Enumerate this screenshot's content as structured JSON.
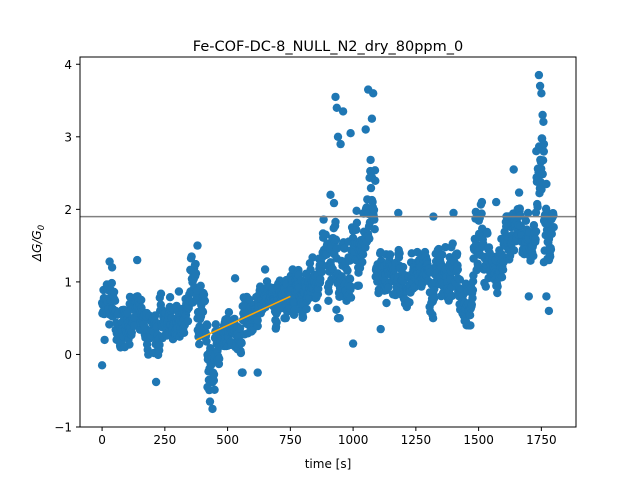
{
  "chart_data": {
    "type": "scatter",
    "title": "Fe-COF-DC-8_NULL_N2_dry_80ppm_0",
    "xlabel": "time [s]",
    "ylabel_main": "ΔG/G",
    "ylabel_sub": "0",
    "xlim": [
      -88,
      1888
    ],
    "ylim": [
      -1,
      4.1
    ],
    "xticks": [
      0,
      250,
      500,
      750,
      1000,
      1250,
      1500,
      1750
    ],
    "xtick_labels": [
      "0",
      "250",
      "500",
      "750",
      "1000",
      "1250",
      "1500",
      "1750"
    ],
    "yticks": [
      -1,
      0,
      1,
      2,
      3,
      4
    ],
    "ytick_labels": [
      "−1",
      "0",
      "1",
      "2",
      "3",
      "4"
    ],
    "colors": {
      "points": "#1f77b4",
      "trend": "#ffa500",
      "threshold": "#808080"
    },
    "threshold_line": {
      "name": "threshold",
      "y": 1.9
    },
    "trend_line": {
      "name": "trend",
      "x": [
        375,
        750
      ],
      "y": [
        0.2,
        0.8
      ]
    },
    "series": [
      {
        "name": "signal",
        "segments": [
          {
            "x0": 0,
            "x1": 60,
            "base": 0.55,
            "noise": 0.32,
            "min": -0.2,
            "max": 1.3
          },
          {
            "x0": 60,
            "x1": 110,
            "base": 0.35,
            "noise": 0.3,
            "min": -0.05,
            "max": 1.0
          },
          {
            "x0": 110,
            "x1": 150,
            "base": 0.7,
            "noise": 0.28,
            "min": 0.1,
            "max": 1.2
          },
          {
            "x0": 150,
            "x1": 200,
            "base": 0.5,
            "noise": 0.3,
            "min": -0.05,
            "max": 1.0
          },
          {
            "x0": 200,
            "x1": 230,
            "base": 0.3,
            "noise": 0.35,
            "min": -0.4,
            "max": 0.8
          },
          {
            "x0": 230,
            "x1": 300,
            "base": 0.55,
            "noise": 0.3,
            "min": 0.0,
            "max": 1.05
          },
          {
            "x0": 300,
            "x1": 350,
            "base": 0.55,
            "noise": 0.35,
            "min": 0.0,
            "max": 1.15
          },
          {
            "x0": 350,
            "x1": 380,
            "base": 0.8,
            "noise": 0.35,
            "min": 0.1,
            "max": 1.5
          },
          {
            "x0": 380,
            "x1": 420,
            "base": 0.3,
            "noise": 0.4,
            "min": -0.3,
            "max": 1.2
          },
          {
            "x0": 420,
            "x1": 450,
            "base": -0.05,
            "noise": 0.4,
            "min": -0.75,
            "max": 0.6
          },
          {
            "x0": 450,
            "x1": 500,
            "base": 0.25,
            "noise": 0.3,
            "min": -0.2,
            "max": 0.8
          },
          {
            "x0": 500,
            "x1": 560,
            "base": 0.3,
            "noise": 0.3,
            "min": -0.25,
            "max": 1.05
          },
          {
            "x0": 560,
            "x1": 620,
            "base": 0.5,
            "noise": 0.3,
            "min": -0.25,
            "max": 1.1
          },
          {
            "x0": 620,
            "x1": 700,
            "base": 0.75,
            "noise": 0.3,
            "min": 0.1,
            "max": 1.2
          },
          {
            "x0": 700,
            "x1": 770,
            "base": 0.85,
            "noise": 0.3,
            "min": 0.15,
            "max": 1.55
          },
          {
            "x0": 770,
            "x1": 860,
            "base": 0.95,
            "noise": 0.3,
            "min": 0.3,
            "max": 1.6
          },
          {
            "x0": 860,
            "x1": 920,
            "base": 1.2,
            "noise": 0.4,
            "min": 0.4,
            "max": 2.2
          },
          {
            "x0": 920,
            "x1": 950,
            "base": 1.6,
            "noise": 0.7,
            "min": 0.5,
            "max": 3.55
          },
          {
            "x0": 950,
            "x1": 1000,
            "base": 1.3,
            "noise": 0.55,
            "min": 0.2,
            "max": 2.9
          },
          {
            "x0": 1000,
            "x1": 1050,
            "base": 1.6,
            "noise": 0.6,
            "min": 0.15,
            "max": 3.4
          },
          {
            "x0": 1050,
            "x1": 1090,
            "base": 1.9,
            "noise": 0.65,
            "min": 0.5,
            "max": 3.65
          },
          {
            "x0": 1090,
            "x1": 1150,
            "base": 1.05,
            "noise": 0.35,
            "min": 0.35,
            "max": 1.8
          },
          {
            "x0": 1150,
            "x1": 1250,
            "base": 1.1,
            "noise": 0.35,
            "min": 0.6,
            "max": 1.95
          },
          {
            "x0": 1250,
            "x1": 1350,
            "base": 1.15,
            "noise": 0.35,
            "min": 0.5,
            "max": 1.9
          },
          {
            "x0": 1350,
            "x1": 1420,
            "base": 1.05,
            "noise": 0.4,
            "min": 0.35,
            "max": 1.95
          },
          {
            "x0": 1420,
            "x1": 1480,
            "base": 0.95,
            "noise": 0.35,
            "min": 0.4,
            "max": 1.6
          },
          {
            "x0": 1480,
            "x1": 1540,
            "base": 1.45,
            "noise": 0.4,
            "min": 0.7,
            "max": 2.1
          },
          {
            "x0": 1540,
            "x1": 1600,
            "base": 1.25,
            "noise": 0.4,
            "min": 0.4,
            "max": 2.1
          },
          {
            "x0": 1600,
            "x1": 1680,
            "base": 1.7,
            "noise": 0.4,
            "min": 0.8,
            "max": 2.55
          },
          {
            "x0": 1680,
            "x1": 1730,
            "base": 1.55,
            "noise": 0.35,
            "min": 0.85,
            "max": 2.2
          },
          {
            "x0": 1730,
            "x1": 1760,
            "base": 2.6,
            "noise": 0.65,
            "min": 1.3,
            "max": 3.85
          },
          {
            "x0": 1760,
            "x1": 1800,
            "base": 1.6,
            "noise": 0.4,
            "min": 0.6,
            "max": 2.35
          }
        ],
        "points": [
          [
            0,
            -0.15
          ],
          [
            10,
            0.2
          ],
          [
            30,
            1.28
          ],
          [
            40,
            1.2
          ],
          [
            90,
            0.1
          ],
          [
            140,
            1.3
          ],
          [
            215,
            -0.38
          ],
          [
            380,
            1.5
          ],
          [
            420,
            -0.45
          ],
          [
            430,
            -0.65
          ],
          [
            440,
            -0.75
          ],
          [
            530,
            1.05
          ],
          [
            620,
            -0.25
          ],
          [
            910,
            2.2
          ],
          [
            930,
            3.55
          ],
          [
            935,
            3.4
          ],
          [
            940,
            3.0
          ],
          [
            950,
            2.9
          ],
          [
            960,
            3.35
          ],
          [
            990,
            3.05
          ],
          [
            1000,
            0.15
          ],
          [
            1060,
            3.65
          ],
          [
            1080,
            3.6
          ],
          [
            1075,
            3.25
          ],
          [
            1050,
            3.1
          ],
          [
            1110,
            0.35
          ],
          [
            1180,
            1.95
          ],
          [
            1320,
            1.9
          ],
          [
            1400,
            1.95
          ],
          [
            1450,
            0.45
          ],
          [
            1570,
            2.1
          ],
          [
            1640,
            2.55
          ],
          [
            1700,
            0.8
          ],
          [
            1740,
            3.85
          ],
          [
            1745,
            3.7
          ],
          [
            1750,
            3.6
          ],
          [
            1755,
            3.3
          ],
          [
            1760,
            2.9
          ],
          [
            1770,
            2.35
          ],
          [
            1780,
            0.6
          ],
          [
            1770,
            0.8
          ],
          [
            1780,
            1.3
          ]
        ]
      }
    ]
  }
}
